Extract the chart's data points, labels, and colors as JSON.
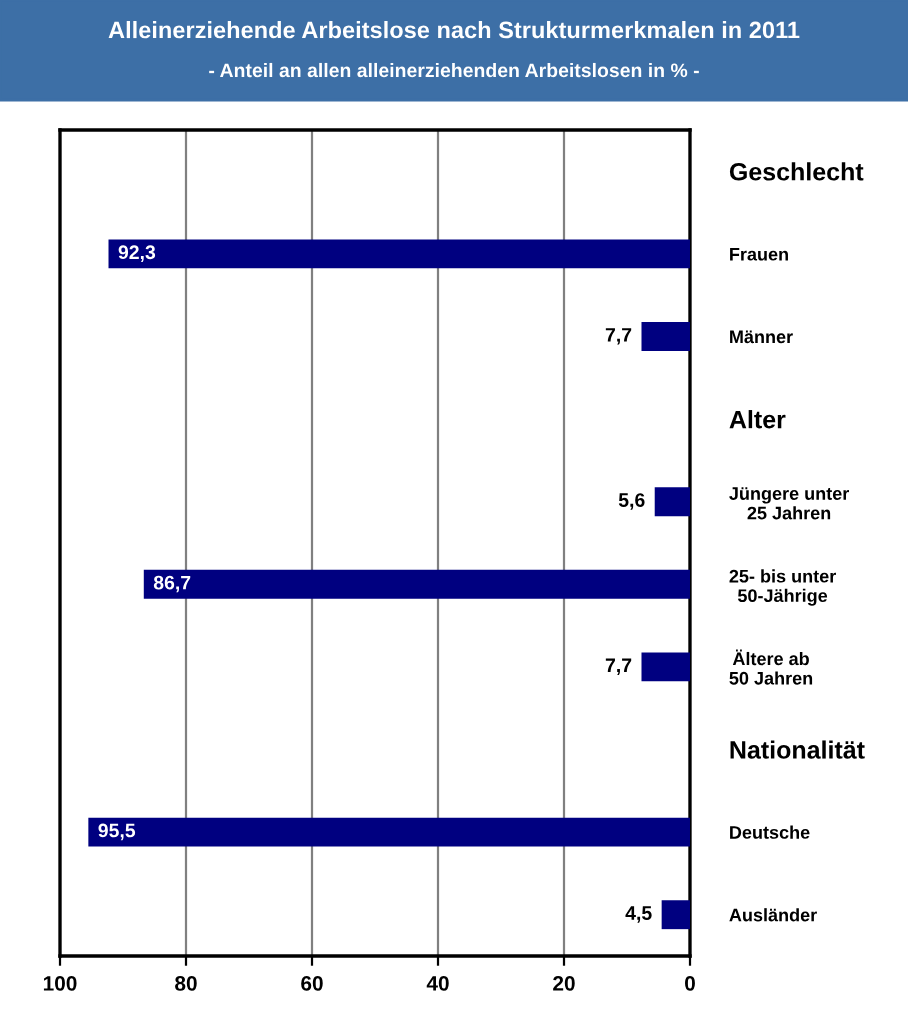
{
  "chart_data": {
    "type": "bar",
    "orientation": "horizontal",
    "title": "Alleinerziehende Arbeitslose nach Strukturmerkmalen in 2011",
    "subtitle": "- Anteil an allen alleinerziehenden Arbeitslosen in % -",
    "categories": [
      "Geschlecht",
      "Frauen",
      "Männer",
      "Alter",
      "Jüngere unter\n25 Jahren",
      "25- bis unter\n50-Jährige",
      "Ältere ab\n50 Jahren",
      "Nationalität",
      "Deutsche",
      "Ausländer"
    ],
    "values": [
      null,
      92.3,
      7.7,
      null,
      5.6,
      86.7,
      7.7,
      null,
      95.5,
      4.5
    ],
    "value_labels": [
      null,
      "92,3",
      "7,7",
      null,
      "5,6",
      "86,7",
      "7,7",
      null,
      "95,5",
      "4,5"
    ],
    "color": "#000080",
    "xlim": [
      100,
      0
    ],
    "xticks": [
      100,
      80,
      60,
      40,
      20,
      0
    ],
    "grid": "x",
    "legend": false
  }
}
